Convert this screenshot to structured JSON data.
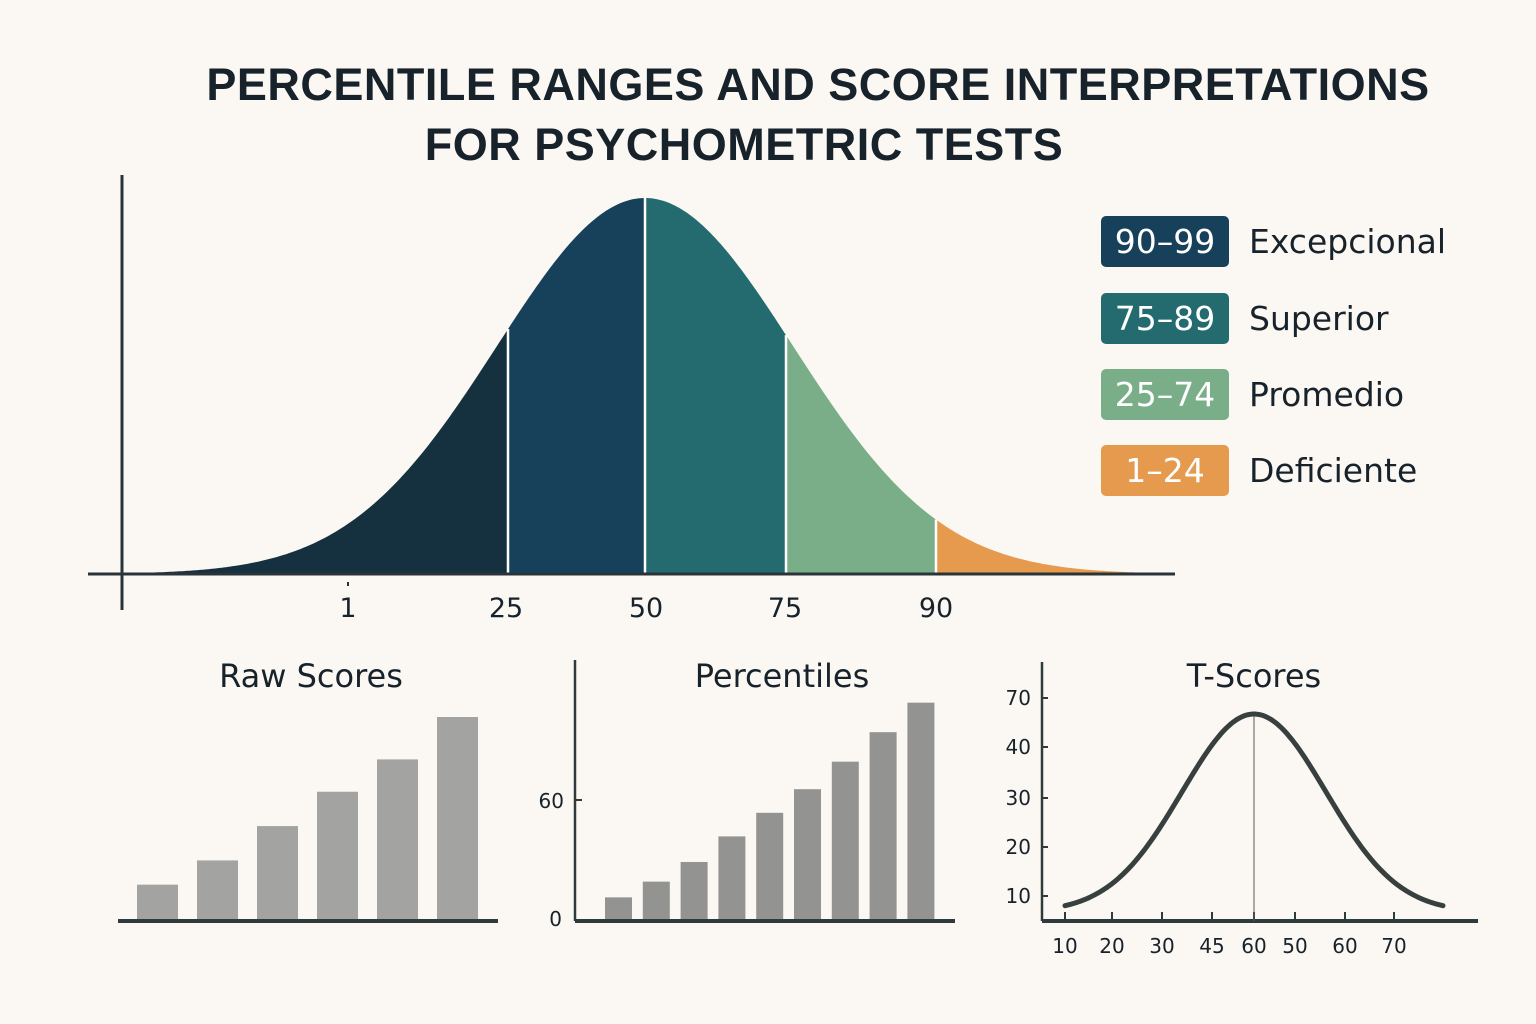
{
  "title_line1": "PERCENTILE RANGES AND SCORE INTERPRETATIONS",
  "title_line2": "FOR PSYCHOMETRIC TESTS",
  "legend": [
    {
      "range": "90–99",
      "label": "Excepcional",
      "color": "#17405a"
    },
    {
      "range": "75–89",
      "label": "Superior",
      "color": "#236b6e"
    },
    {
      "range": "25–74",
      "label": "Promedio",
      "color": "#7aae88"
    },
    {
      "range": "1–24",
      "label": "Deficiente",
      "color": "#e69a4d"
    }
  ],
  "chart_data": [
    {
      "type": "area",
      "shape": "normal distribution",
      "x_tick_labels": [
        "1",
        "25",
        "50",
        "75",
        "90"
      ],
      "segments": [
        {
          "from": "1",
          "to": "25",
          "color": "#15303f"
        },
        {
          "from": "25",
          "to": "50",
          "color": "#17405a"
        },
        {
          "from": "50",
          "to": "75",
          "color": "#236b6e"
        },
        {
          "from": "75",
          "to": "90",
          "color": "#7aae88"
        },
        {
          "from": "90",
          "to": "99",
          "color": "#e69a4d"
        }
      ],
      "grid": false
    },
    {
      "type": "bar",
      "title": "Raw Scores",
      "values": [
        17,
        29,
        46,
        63,
        79,
        100
      ],
      "color": "#a3a3a1",
      "grid": false
    },
    {
      "type": "bar",
      "title": "Percentiles",
      "y_tick_labels": [
        "0",
        "60"
      ],
      "values": [
        11,
        19,
        29,
        42,
        54,
        66,
        80,
        95,
        110
      ],
      "color": "#939391",
      "grid": false
    },
    {
      "type": "line",
      "title": "T-Scores",
      "shape": "normal distribution",
      "y_tick_labels": [
        "70",
        "40",
        "30",
        "20",
        "10"
      ],
      "x_tick_labels": [
        "10",
        "20",
        "30",
        "45",
        "60",
        "50",
        "60",
        "70"
      ],
      "peak_at_label": "60",
      "color": "#37403f",
      "grid": false
    }
  ]
}
